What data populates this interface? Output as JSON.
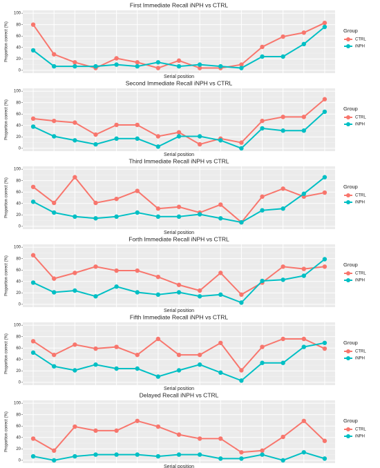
{
  "chart_data": [
    {
      "type": "line",
      "title": "First Immediate Recall iNPH vs CTRL",
      "xlabel": "Serial position",
      "ylabel": "Proportion correct (%)",
      "legend_title": "Group",
      "legend": "right",
      "grid": true,
      "categories": [
        null,
        null,
        null,
        null,
        null,
        null,
        null,
        null,
        null,
        null,
        null,
        null,
        null,
        null,
        null
      ],
      "ylim": [
        -5,
        105
      ],
      "yticks": [
        0,
        20,
        40,
        60,
        80,
        100
      ],
      "series": [
        {
          "name": "CTRL",
          "color": "#F8766D",
          "values": [
            80,
            28,
            14,
            4,
            21,
            14,
            4,
            17,
            4,
            4,
            10,
            41,
            59,
            66,
            83
          ]
        },
        {
          "name": "iNPH",
          "color": "#00BFC4",
          "values": [
            35,
            7,
            7,
            7,
            10,
            7,
            14,
            7,
            10,
            7,
            4,
            24,
            24,
            46,
            76
          ]
        }
      ]
    },
    {
      "type": "line",
      "title": "Second Immediate Recall iNPH vs CTRL",
      "xlabel": "Serial position",
      "ylabel": "Proportion correct (%)",
      "legend_title": "Group",
      "legend": "right",
      "grid": true,
      "categories": [
        null,
        null,
        null,
        null,
        null,
        null,
        null,
        null,
        null,
        null,
        null,
        null,
        null,
        null,
        null
      ],
      "ylim": [
        -5,
        105
      ],
      "yticks": [
        0,
        20,
        40,
        60,
        80,
        100
      ],
      "series": [
        {
          "name": "CTRL",
          "color": "#F8766D",
          "values": [
            52,
            48,
            45,
            24,
            41,
            41,
            21,
            28,
            7,
            17,
            10,
            48,
            55,
            55,
            86
          ]
        },
        {
          "name": "iNPH",
          "color": "#00BFC4",
          "values": [
            38,
            21,
            14,
            7,
            17,
            17,
            3,
            21,
            21,
            14,
            0,
            35,
            31,
            31,
            64
          ]
        }
      ]
    },
    {
      "type": "line",
      "title": "Third Immediate Recall iNPH vs CTRL",
      "xlabel": "Serial position",
      "ylabel": "Proportion correct (%)",
      "legend_title": "Group",
      "legend": "right",
      "grid": true,
      "categories": [
        null,
        null,
        null,
        null,
        null,
        null,
        null,
        null,
        null,
        null,
        null,
        null,
        null,
        null,
        null
      ],
      "ylim": [
        -5,
        105
      ],
      "yticks": [
        0,
        20,
        40,
        60,
        80,
        100
      ],
      "series": [
        {
          "name": "CTRL",
          "color": "#F8766D",
          "values": [
            69,
            41,
            86,
            41,
            48,
            62,
            31,
            34,
            24,
            38,
            7,
            52,
            66,
            52,
            59
          ]
        },
        {
          "name": "iNPH",
          "color": "#00BFC4",
          "values": [
            43,
            24,
            17,
            14,
            17,
            24,
            17,
            17,
            21,
            14,
            7,
            28,
            31,
            57,
            86
          ]
        }
      ]
    },
    {
      "type": "line",
      "title": "Forth Immediate Recall iNPH vs CTRL",
      "xlabel": "Serial position",
      "ylabel": "Proportion correct (%)",
      "legend_title": "Group",
      "legend": "right",
      "grid": true,
      "categories": [
        null,
        null,
        null,
        null,
        null,
        null,
        null,
        null,
        null,
        null,
        null,
        null,
        null,
        null,
        null
      ],
      "ylim": [
        -5,
        105
      ],
      "yticks": [
        0,
        20,
        40,
        60,
        80,
        100
      ],
      "series": [
        {
          "name": "CTRL",
          "color": "#F8766D",
          "values": [
            86,
            45,
            55,
            66,
            59,
            59,
            48,
            34,
            24,
            55,
            17,
            38,
            66,
            62,
            66
          ]
        },
        {
          "name": "iNPH",
          "color": "#00BFC4",
          "values": [
            38,
            21,
            24,
            14,
            31,
            21,
            17,
            21,
            14,
            17,
            3,
            41,
            43,
            50,
            79
          ]
        }
      ]
    },
    {
      "type": "line",
      "title": "Fifth Immediate Recall iNPH vs CTRL",
      "xlabel": "Serial position",
      "ylabel": "Proportion correct (%)",
      "legend_title": "Group",
      "legend": "right",
      "grid": true,
      "categories": [
        null,
        null,
        null,
        null,
        null,
        null,
        null,
        null,
        null,
        null,
        null,
        null,
        null,
        null,
        null
      ],
      "ylim": [
        -5,
        105
      ],
      "yticks": [
        0,
        20,
        40,
        60,
        80,
        100
      ],
      "series": [
        {
          "name": "CTRL",
          "color": "#F8766D",
          "values": [
            72,
            48,
            66,
            59,
            62,
            48,
            76,
            48,
            48,
            69,
            21,
            62,
            76,
            76,
            59
          ]
        },
        {
          "name": "iNPH",
          "color": "#00BFC4",
          "values": [
            52,
            28,
            21,
            31,
            24,
            24,
            10,
            21,
            31,
            17,
            3,
            34,
            34,
            62,
            69
          ]
        }
      ]
    },
    {
      "type": "line",
      "title": "Delayed Recall iNPH vs CTRL",
      "xlabel": "Serial position",
      "ylabel": "Proportion correct (%)",
      "legend_title": "Group",
      "legend": "right",
      "grid": true,
      "categories": [
        null,
        null,
        null,
        null,
        null,
        null,
        null,
        null,
        null,
        null,
        null,
        null,
        null,
        null,
        null
      ],
      "ylim": [
        -5,
        105
      ],
      "yticks": [
        0,
        20,
        40,
        60,
        80,
        100
      ],
      "series": [
        {
          "name": "CTRL",
          "color": "#F8766D",
          "values": [
            38,
            17,
            59,
            52,
            52,
            69,
            59,
            45,
            38,
            38,
            14,
            17,
            41,
            69,
            34
          ]
        },
        {
          "name": "iNPH",
          "color": "#00BFC4",
          "values": [
            7,
            0,
            7,
            10,
            10,
            10,
            7,
            10,
            10,
            3,
            3,
            10,
            0,
            14,
            3
          ]
        }
      ]
    }
  ]
}
